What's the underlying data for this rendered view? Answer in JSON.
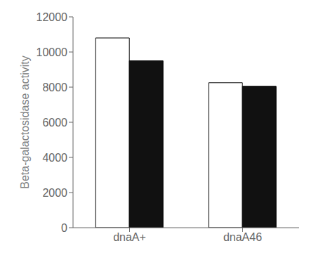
{
  "chart_data": {
    "type": "bar",
    "categories": [
      "dnaA+",
      "dnaA46"
    ],
    "series": [
      {
        "color": "#ffffff",
        "values": [
          10800,
          8250
        ]
      },
      {
        "color": "#111111",
        "values": [
          9500,
          8050
        ]
      }
    ],
    "ylabel": "Beta-galactosidase activity",
    "ylim": [
      0,
      12000
    ],
    "yticks": [
      0,
      2000,
      4000,
      6000,
      8000,
      10000,
      12000
    ],
    "grid": false
  }
}
